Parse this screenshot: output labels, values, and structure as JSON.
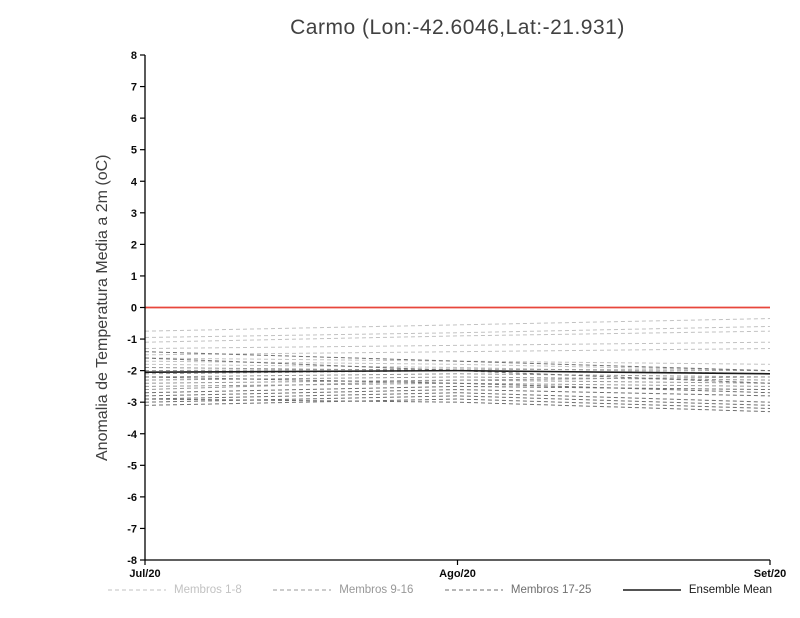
{
  "chart_data": {
    "type": "line",
    "title": "Carmo (Lon:-42.6046,Lat:-21.931)",
    "ylabel": "Anomalia de Temperatura Media a 2m (oC)",
    "xlabel": "",
    "x_categories": [
      "Jul/20",
      "Ago/20",
      "Set/20"
    ],
    "ylim": [
      -8,
      8
    ],
    "ytick_step": 1,
    "grid": false,
    "zero_line": {
      "value": 0,
      "color": "#e8463c"
    },
    "group_colors": {
      "g1": "#c2c2c2",
      "g2": "#989898",
      "g3": "#6f6f6f",
      "mean": "#1a1a1a"
    },
    "series": [
      {
        "name": "m01",
        "group": "g1",
        "values": [
          -0.75,
          -0.55,
          -0.35
        ]
      },
      {
        "name": "m02",
        "group": "g1",
        "values": [
          -0.95,
          -0.8,
          -0.6
        ]
      },
      {
        "name": "m03",
        "group": "g1",
        "values": [
          -1.1,
          -0.9,
          -0.75
        ]
      },
      {
        "name": "m04",
        "group": "g1",
        "values": [
          -1.3,
          -1.2,
          -1.1
        ]
      },
      {
        "name": "m05",
        "group": "g1",
        "values": [
          -1.5,
          -1.4,
          -1.3
        ]
      },
      {
        "name": "m06",
        "group": "g1",
        "values": [
          -1.6,
          -1.7,
          -1.8
        ]
      },
      {
        "name": "m07",
        "group": "g1",
        "values": [
          -1.7,
          -1.8,
          -2.0
        ]
      },
      {
        "name": "m08",
        "group": "g1",
        "values": [
          -1.8,
          -1.9,
          -2.1
        ]
      },
      {
        "name": "m09",
        "group": "g2",
        "values": [
          -1.9,
          -2.0,
          -2.1
        ]
      },
      {
        "name": "m10",
        "group": "g2",
        "values": [
          -2.0,
          -1.95,
          -2.0
        ]
      },
      {
        "name": "m11",
        "group": "g2",
        "values": [
          -2.1,
          -2.0,
          -2.1
        ]
      },
      {
        "name": "m12",
        "group": "g2",
        "values": [
          -2.2,
          -2.1,
          -2.2
        ]
      },
      {
        "name": "m13",
        "group": "g2",
        "values": [
          -2.3,
          -2.2,
          -2.3
        ]
      },
      {
        "name": "m14",
        "group": "g2",
        "values": [
          -2.4,
          -2.3,
          -2.4
        ]
      },
      {
        "name": "m15",
        "group": "g2",
        "values": [
          -2.5,
          -2.4,
          -2.5
        ]
      },
      {
        "name": "m16",
        "group": "g2",
        "values": [
          -2.6,
          -2.3,
          -2.2
        ]
      },
      {
        "name": "m17",
        "group": "g3",
        "values": [
          -2.7,
          -2.5,
          -2.6
        ]
      },
      {
        "name": "m18",
        "group": "g3",
        "values": [
          -2.8,
          -2.6,
          -2.8
        ]
      },
      {
        "name": "m19",
        "group": "g3",
        "values": [
          -2.9,
          -2.7,
          -3.0
        ]
      },
      {
        "name": "m20",
        "group": "g3",
        "values": [
          -3.0,
          -2.8,
          -3.1
        ]
      },
      {
        "name": "m21",
        "group": "g3",
        "values": [
          -3.1,
          -2.9,
          -3.2
        ]
      },
      {
        "name": "m22",
        "group": "g3",
        "values": [
          -2.9,
          -3.0,
          -3.3
        ]
      },
      {
        "name": "m23",
        "group": "g3",
        "values": [
          -2.2,
          -2.4,
          -2.7
        ]
      },
      {
        "name": "m24",
        "group": "g3",
        "values": [
          -1.6,
          -2.0,
          -2.4
        ]
      },
      {
        "name": "m25",
        "group": "g3",
        "values": [
          -1.4,
          -1.7,
          -2.0
        ]
      },
      {
        "name": "Ensemble Mean",
        "group": "mean",
        "values": [
          -2.05,
          -2.0,
          -2.1
        ]
      }
    ],
    "legend": [
      {
        "label": "Membros 1-8",
        "color": "#c2c2c2",
        "dashed": true
      },
      {
        "label": "Membros 9-16",
        "color": "#989898",
        "dashed": true
      },
      {
        "label": "Membros 17-25",
        "color": "#6f6f6f",
        "dashed": true
      },
      {
        "label": "Ensemble Mean",
        "color": "#1a1a1a",
        "dashed": false
      }
    ]
  }
}
